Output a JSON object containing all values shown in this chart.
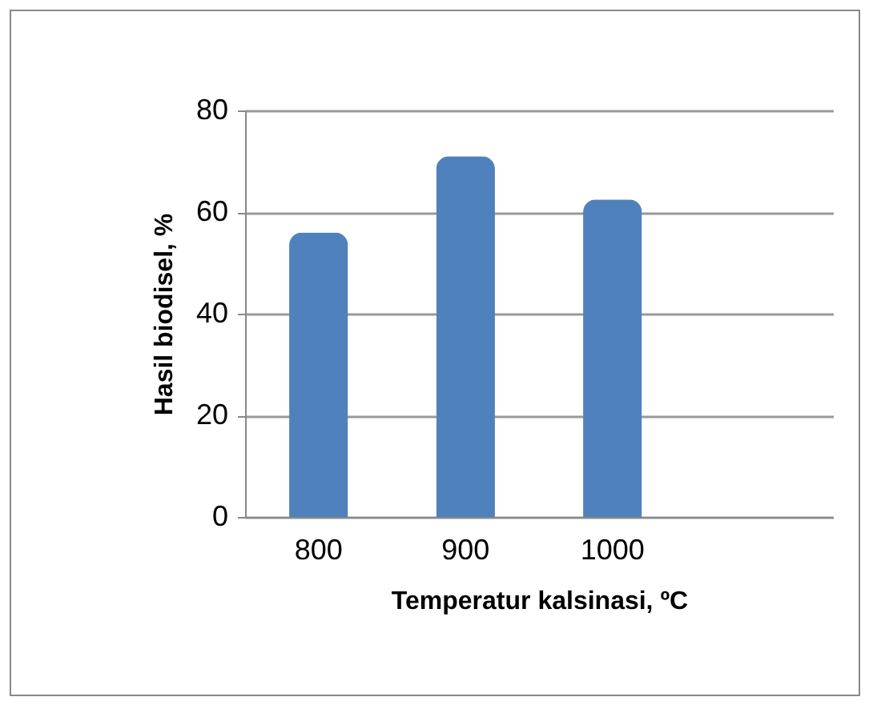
{
  "chart_data": {
    "type": "bar",
    "xlabel": "Temperatur kalsinasi, ºC",
    "ylabel": "Hasil biodisel,  %",
    "categories": [
      "800",
      "900",
      "1000",
      null
    ],
    "values": [
      56,
      71,
      62.5,
      null
    ],
    "color": "#4f81bd",
    "ylim": [
      0,
      80
    ],
    "yticks": [
      0,
      20,
      40,
      60,
      80
    ],
    "grid": "y"
  }
}
